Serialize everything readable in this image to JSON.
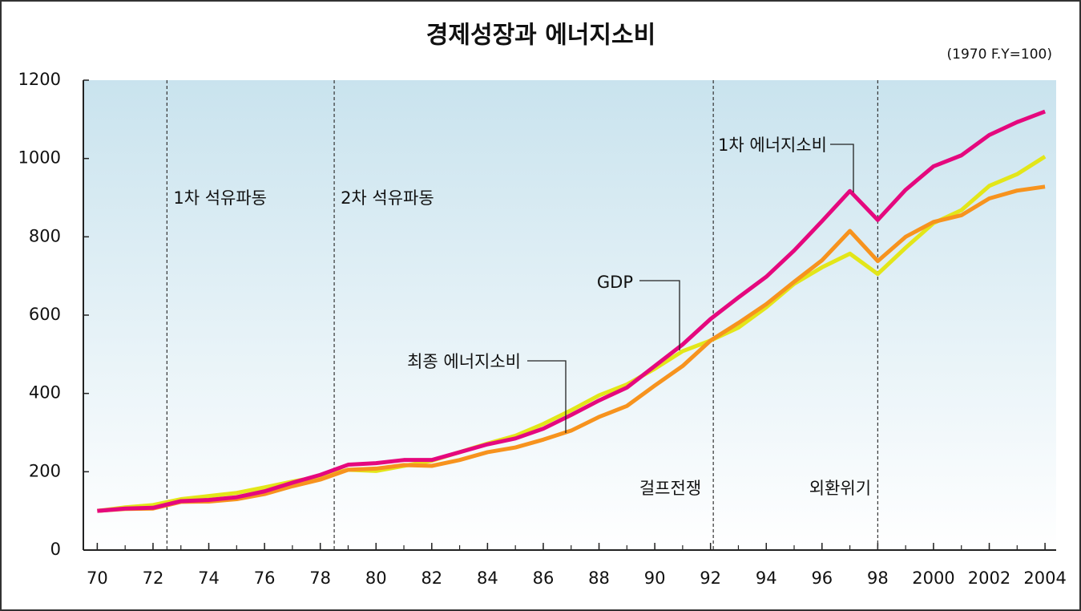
{
  "chart_data": {
    "type": "line",
    "title": "경제성장과 에너지소비",
    "subtitle": "(1970 F.Y=100)",
    "x": [
      1970,
      1971,
      1972,
      1973,
      1974,
      1975,
      1976,
      1977,
      1978,
      1979,
      1980,
      1981,
      1982,
      1983,
      1984,
      1985,
      1986,
      1987,
      1988,
      1989,
      1990,
      1991,
      1992,
      1993,
      1994,
      1995,
      1996,
      1997,
      1998,
      1999,
      2000,
      2001,
      2002,
      2003,
      2004
    ],
    "series": [
      {
        "name": "GDP",
        "color": "#e3e619",
        "values": [
          100,
          109,
          115,
          130,
          138,
          146,
          160,
          175,
          188,
          205,
          202,
          215,
          228,
          250,
          272,
          292,
          322,
          357,
          395,
          423,
          463,
          508,
          535,
          568,
          620,
          680,
          722,
          757,
          705,
          772,
          835,
          868,
          930,
          960,
          1005
        ]
      },
      {
        "name": "최종 에너지소비",
        "color": "#f7931e",
        "values": [
          100,
          105,
          106,
          123,
          124,
          130,
          143,
          163,
          180,
          205,
          208,
          217,
          215,
          230,
          250,
          262,
          282,
          305,
          340,
          368,
          420,
          470,
          535,
          580,
          628,
          685,
          740,
          815,
          738,
          800,
          838,
          855,
          898,
          918,
          928
        ]
      },
      {
        "name": "1차 에너지소비",
        "color": "#e5087e",
        "values": [
          100,
          106,
          108,
          125,
          128,
          135,
          150,
          172,
          192,
          218,
          222,
          230,
          230,
          250,
          270,
          285,
          310,
          345,
          382,
          415,
          470,
          525,
          590,
          645,
          698,
          765,
          840,
          917,
          843,
          920,
          980,
          1008,
          1060,
          1093,
          1120
        ]
      }
    ],
    "annotations": [
      {
        "text": "1차 석유파동",
        "x": 1972.5
      },
      {
        "text": "2차 석유파동",
        "x": 1978.5
      },
      {
        "text": "걸프전쟁",
        "x": 1992.1
      },
      {
        "text": "외환위기",
        "x": 1998
      }
    ],
    "xlim": [
      1969.5,
      2004.4
    ],
    "xticks": [
      {
        "value": 1970,
        "label": "70"
      },
      {
        "value": 1972,
        "label": "72"
      },
      {
        "value": 1974,
        "label": "74"
      },
      {
        "value": 1976,
        "label": "76"
      },
      {
        "value": 1978,
        "label": "78"
      },
      {
        "value": 1980,
        "label": "80"
      },
      {
        "value": 1982,
        "label": "82"
      },
      {
        "value": 1984,
        "label": "84"
      },
      {
        "value": 1986,
        "label": "86"
      },
      {
        "value": 1988,
        "label": "88"
      },
      {
        "value": 1990,
        "label": "90"
      },
      {
        "value": 1992,
        "label": "92"
      },
      {
        "value": 1994,
        "label": "94"
      },
      {
        "value": 1996,
        "label": "96"
      },
      {
        "value": 1998,
        "label": "98"
      },
      2000,
      2002,
      2004
    ],
    "ylim": [
      0,
      1200
    ],
    "yticks": [
      0,
      200,
      400,
      600,
      800,
      1000,
      1200
    ]
  }
}
